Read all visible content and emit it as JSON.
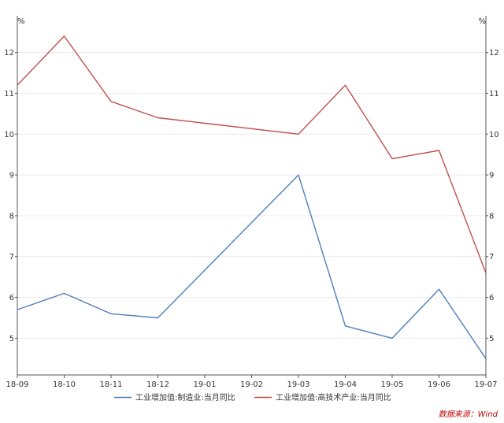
{
  "chart_data": {
    "type": "line",
    "categories": [
      "18-09",
      "18-10",
      "18-11",
      "18-12",
      "19-01",
      "19-02",
      "19-03",
      "19-04",
      "19-05",
      "19-06",
      "19-07"
    ],
    "series": [
      {
        "name": "工业增加值:制造业:当月同比",
        "color": "#4f7fb8",
        "values": [
          5.7,
          6.1,
          5.6,
          5.5,
          null,
          null,
          9.0,
          5.3,
          5.0,
          6.2,
          4.5
        ]
      },
      {
        "name": "工业增加值:高技术产业:当月同比",
        "color": "#c0504d",
        "values": [
          11.2,
          12.4,
          10.8,
          10.4,
          null,
          null,
          10.0,
          11.2,
          9.4,
          9.6,
          6.6
        ]
      }
    ],
    "y_unit_left": "%",
    "y_unit_right": "%",
    "ylim": [
      4.1,
      12.9
    ],
    "y_ticks": [
      5,
      6,
      7,
      8,
      9,
      10,
      11,
      12
    ],
    "grid": true,
    "legend_position": "bottom",
    "source": "数据来源：Wind"
  }
}
